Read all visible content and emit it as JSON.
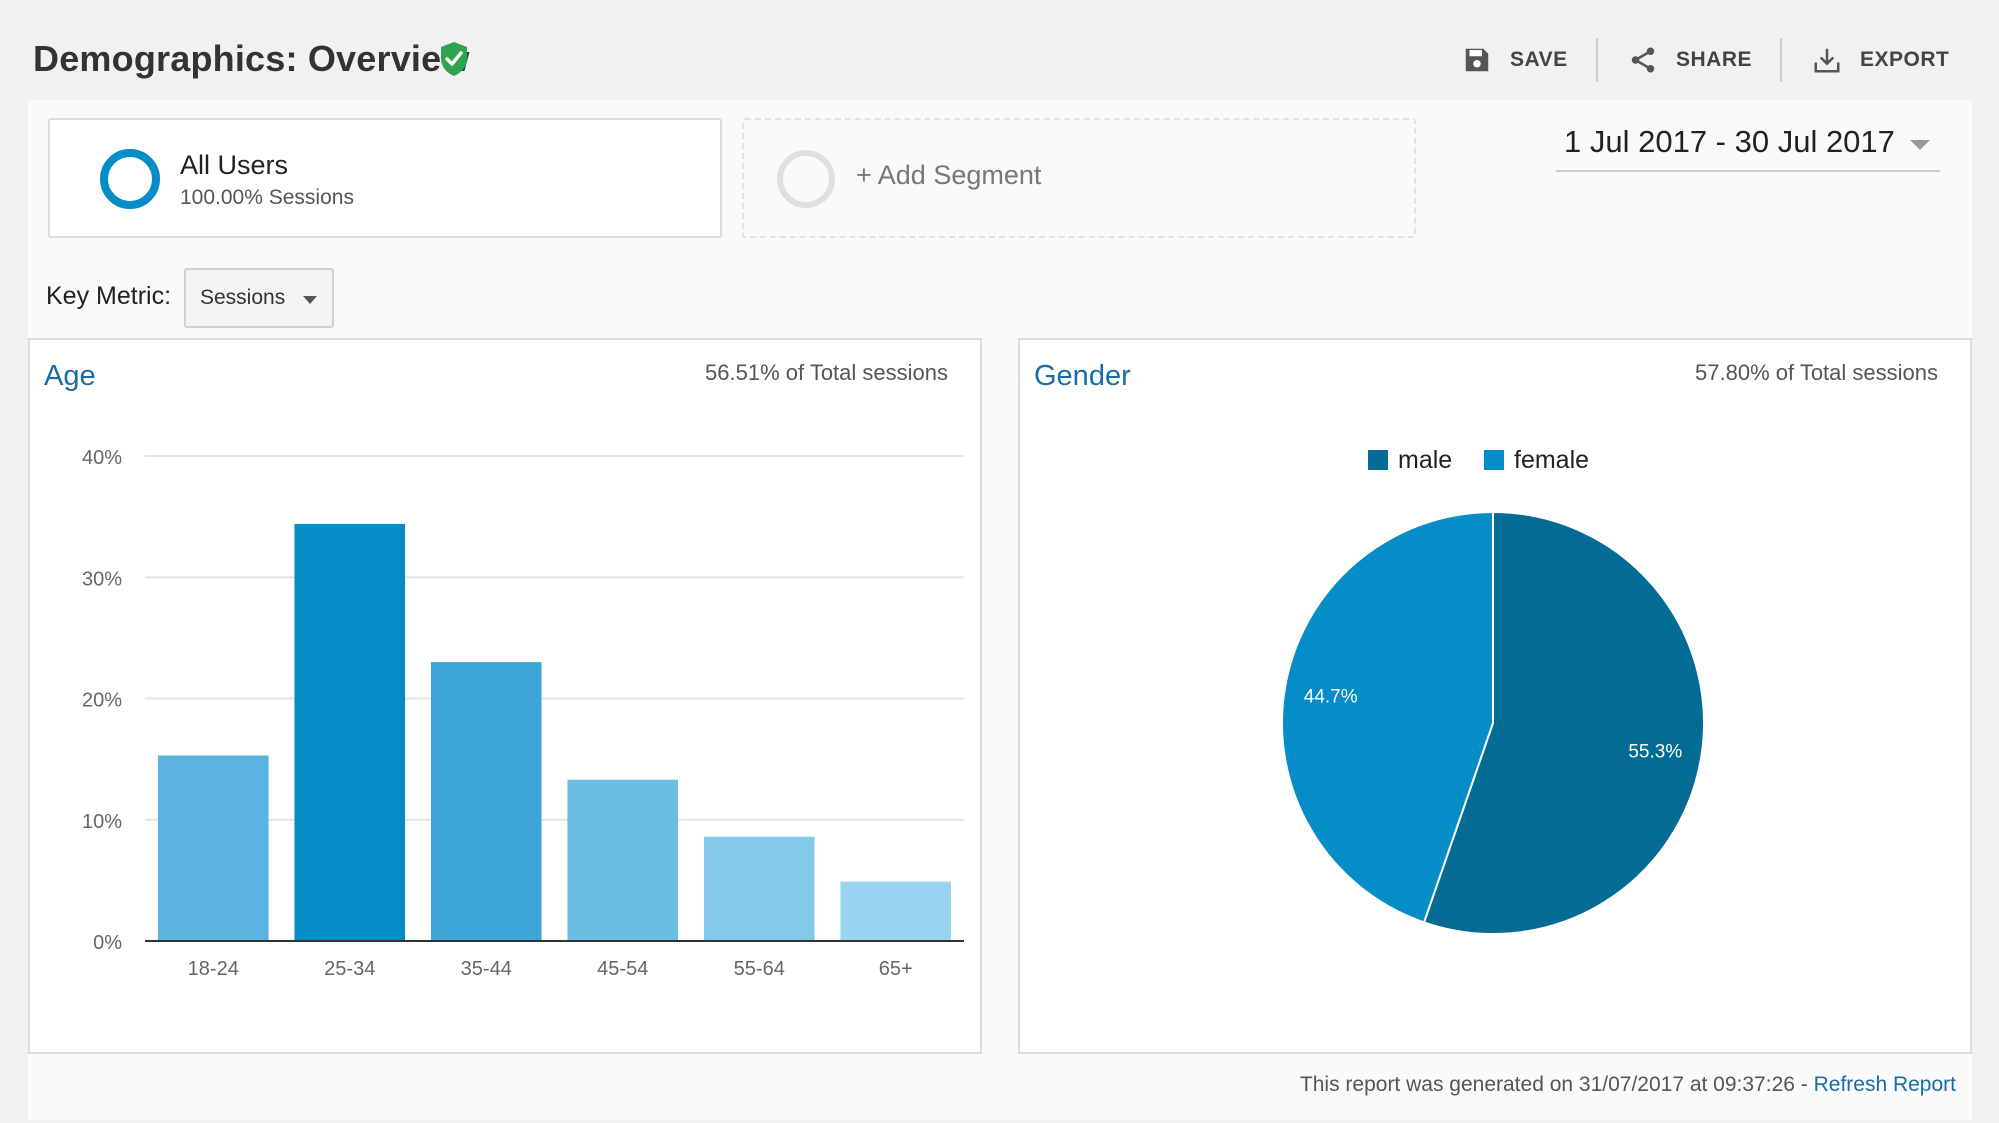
{
  "header": {
    "title": "Demographics: Overview",
    "verified_icon": "shield-check-icon",
    "actions": [
      {
        "label": "SAVE",
        "icon": "save-icon"
      },
      {
        "label": "SHARE",
        "icon": "share-icon"
      },
      {
        "label": "EXPORT",
        "icon": "export-icon"
      }
    ]
  },
  "segments": {
    "active": {
      "name": "All Users",
      "sub": "100.00% Sessions",
      "ring_color": "#058dc7"
    },
    "add_label": "+ Add Segment"
  },
  "date_range": "1 Jul 2017 - 30 Jul 2017",
  "key_metric": {
    "label": "Key Metric:",
    "selected": "Sessions"
  },
  "age_card": {
    "title": "Age",
    "share": "56.51% of Total sessions"
  },
  "gender_card": {
    "title": "Gender",
    "share": "57.80% of Total sessions"
  },
  "footer": {
    "text": "This report was generated on 31/07/2017 at 09:37:26 - ",
    "link": "Refresh Report"
  },
  "chart_data": [
    {
      "type": "bar",
      "title": "Age",
      "categories": [
        "18-24",
        "25-34",
        "35-44",
        "45-54",
        "55-64",
        "65+"
      ],
      "values": [
        15.3,
        34.4,
        23.0,
        13.3,
        8.6,
        4.9
      ],
      "colors": [
        "#5bb3df",
        "#058dc7",
        "#3da7d9",
        "#6cbde4",
        "#83c9ea",
        "#98d3ef"
      ],
      "yticks": [
        "0%",
        "10%",
        "20%",
        "30%",
        "40%"
      ],
      "ylim": [
        0,
        40
      ],
      "grid": true
    },
    {
      "type": "pie",
      "title": "Gender",
      "series": [
        {
          "name": "male",
          "value": 55.3,
          "label": "55.3%",
          "color": "#046b94"
        },
        {
          "name": "female",
          "value": 44.7,
          "label": "44.7%",
          "color": "#058dc7"
        }
      ],
      "legend_position": "top"
    }
  ]
}
